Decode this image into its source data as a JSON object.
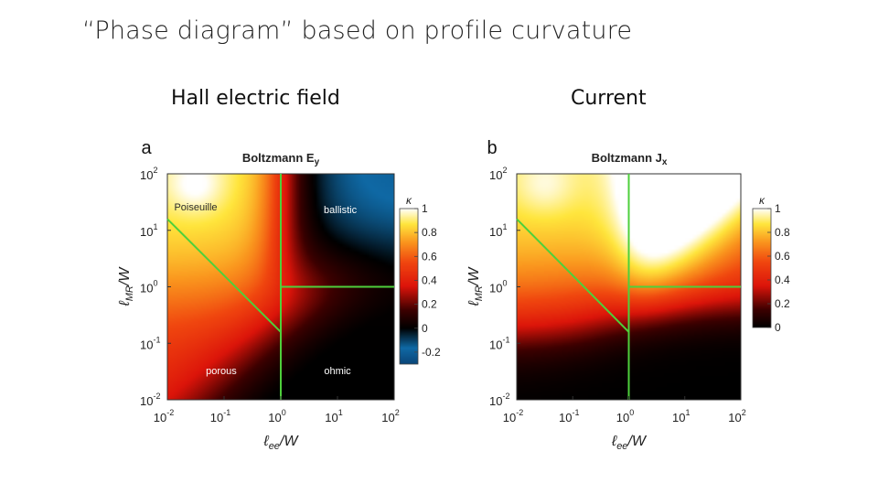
{
  "slide": {
    "title": "“Phase diagram” based on profile curvature",
    "left_header": "Hall electric field",
    "right_header": "Current"
  },
  "colors": {
    "boundary": "#4ed03b",
    "text_light": "#ffffff",
    "text_dark": "#2a2a2a"
  },
  "chart_data": [
    {
      "type": "heatmap",
      "panel": "a",
      "title": "Boltzmann E",
      "title_sub": "y",
      "xlabel_sym": "ℓ",
      "xlabel_sub": "ee",
      "xlabel_rest": "/W",
      "ylabel_sym": "ℓ",
      "ylabel_sub": "MR",
      "ylabel_rest": "/W",
      "x_log_range": [
        -2,
        2
      ],
      "y_log_range": [
        -2,
        2
      ],
      "x_ticks": [
        {
          "base": "10",
          "exp": "-2"
        },
        {
          "base": "10",
          "exp": "-1"
        },
        {
          "base": "10",
          "exp": "0"
        },
        {
          "base": "10",
          "exp": "1"
        },
        {
          "base": "10",
          "exp": "2"
        }
      ],
      "y_ticks": [
        {
          "base": "10",
          "exp": "-2"
        },
        {
          "base": "10",
          "exp": "-1"
        },
        {
          "base": "10",
          "exp": "0"
        },
        {
          "base": "10",
          "exp": "1"
        },
        {
          "base": "10",
          "exp": "2"
        }
      ],
      "colorbar": {
        "label": "κ",
        "min": -0.3,
        "max": 1.0,
        "ticks": [
          "1",
          "0.8",
          "0.6",
          "0.4",
          "0.2",
          "0",
          "-0.2"
        ]
      },
      "regions": [
        {
          "name": "Poiseuille",
          "x_log": -1.5,
          "y_log": 1.35,
          "tone": "dark"
        },
        {
          "name": "ballistic",
          "x_log": 1.05,
          "y_log": 1.3,
          "tone": "light"
        },
        {
          "name": "porous",
          "x_log": -1.05,
          "y_log": -1.55,
          "tone": "light"
        },
        {
          "name": "ohmic",
          "x_log": 1.0,
          "y_log": -1.55,
          "tone": "light"
        }
      ],
      "boundaries": [
        [
          [
            -2,
            1.2
          ],
          [
            0,
            -0.8
          ]
        ],
        [
          [
            0,
            -2
          ],
          [
            0,
            2
          ]
        ],
        [
          [
            0,
            0
          ],
          [
            2,
            0
          ]
        ]
      ]
    },
    {
      "type": "heatmap",
      "panel": "b",
      "title": "Boltzmann J",
      "title_sub": "x",
      "xlabel_sym": "ℓ",
      "xlabel_sub": "ee",
      "xlabel_rest": "/W",
      "ylabel_sym": "ℓ",
      "ylabel_sub": "MR",
      "ylabel_rest": "/W",
      "x_log_range": [
        -2,
        2
      ],
      "y_log_range": [
        -2,
        2
      ],
      "x_ticks": [
        {
          "base": "10",
          "exp": "-2"
        },
        {
          "base": "10",
          "exp": "-1"
        },
        {
          "base": "10",
          "exp": "0"
        },
        {
          "base": "10",
          "exp": "1"
        },
        {
          "base": "10",
          "exp": "2"
        }
      ],
      "y_ticks": [
        {
          "base": "10",
          "exp": "-2"
        },
        {
          "base": "10",
          "exp": "-1"
        },
        {
          "base": "10",
          "exp": "0"
        },
        {
          "base": "10",
          "exp": "1"
        },
        {
          "base": "10",
          "exp": "2"
        }
      ],
      "colorbar": {
        "label": "κ",
        "min": 0,
        "max": 1.0,
        "ticks": [
          "1",
          "0.8",
          "0.6",
          "0.4",
          "0.2",
          "0"
        ]
      },
      "regions": [],
      "boundaries": [
        [
          [
            -2,
            1.2
          ],
          [
            0,
            -0.8
          ]
        ],
        [
          [
            0,
            -2
          ],
          [
            0,
            2
          ]
        ],
        [
          [
            0,
            0
          ],
          [
            2,
            0
          ]
        ]
      ]
    }
  ]
}
